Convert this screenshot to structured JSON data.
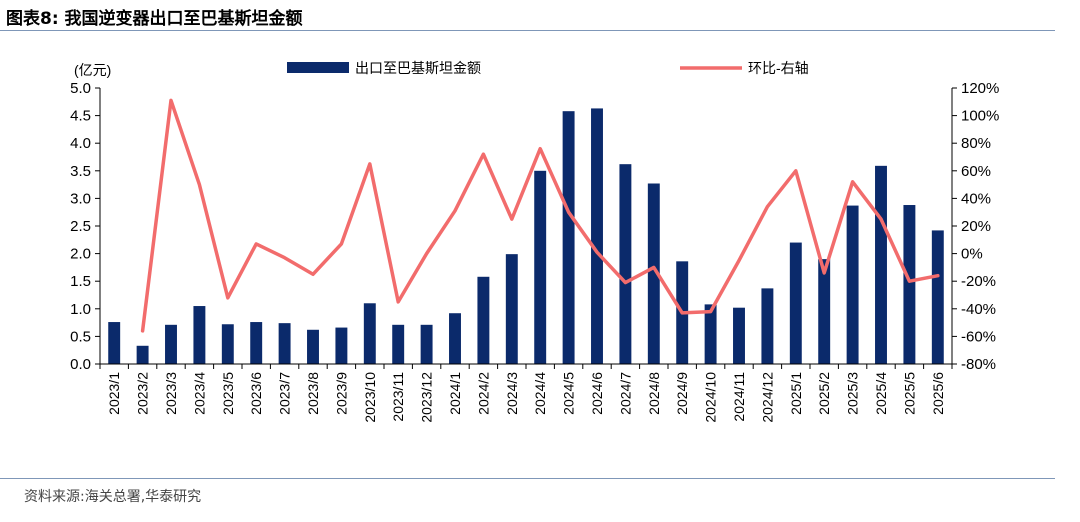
{
  "figure_title": "图表8:  我国逆变器出口至巴基斯坦金额",
  "source": "资料来源:海关总署,华泰研究",
  "chart_data": {
    "type": "bar+line",
    "left_unit_label": "(亿元)",
    "categories": [
      "2023/1",
      "2023/2",
      "2023/3",
      "2023/4",
      "2023/5",
      "2023/6",
      "2023/7",
      "2023/8",
      "2023/9",
      "2023/10",
      "2023/11",
      "2023/12",
      "2024/1",
      "2024/2",
      "2024/3",
      "2024/4",
      "2024/5",
      "2024/6",
      "2024/7",
      "2024/8",
      "2024/9",
      "2024/10",
      "2024/11",
      "2024/12",
      "2025/1",
      "2025/2",
      "2025/3",
      "2025/4",
      "2025/5",
      "2025/6"
    ],
    "series": [
      {
        "name": "出口至巴基斯坦金额",
        "type": "bar",
        "axis": "left",
        "color": "#0b2a6b",
        "values": [
          0.76,
          0.33,
          0.71,
          1.05,
          0.72,
          0.76,
          0.74,
          0.62,
          0.66,
          1.1,
          0.71,
          0.71,
          0.92,
          1.58,
          1.99,
          3.5,
          4.58,
          4.63,
          3.62,
          3.27,
          1.86,
          1.08,
          1.02,
          1.37,
          2.2,
          1.9,
          2.87,
          3.59,
          2.88,
          2.42
        ]
      },
      {
        "name": "环比-右轴",
        "type": "line",
        "axis": "right",
        "color": "#f26c6c",
        "values": [
          null,
          -56,
          111,
          50,
          -32,
          7,
          -3,
          -15,
          7,
          65,
          -35,
          0,
          31,
          72,
          25,
          76,
          30,
          1,
          -21,
          -10,
          -43,
          -42,
          -5,
          34,
          60,
          -14,
          52,
          25,
          -20,
          -16
        ]
      }
    ],
    "left_axis": {
      "min": 0,
      "max": 5,
      "ticks": [
        "0.0",
        "0.5",
        "1.0",
        "1.5",
        "2.0",
        "2.5",
        "3.0",
        "3.5",
        "4.0",
        "4.5",
        "5.0"
      ]
    },
    "right_axis": {
      "min": -80,
      "max": 120,
      "ticks": [
        "-80%",
        "-60%",
        "-40%",
        "-20%",
        "0%",
        "20%",
        "40%",
        "60%",
        "80%",
        "100%",
        "120%"
      ]
    },
    "legend_position": "top",
    "grid": false
  }
}
